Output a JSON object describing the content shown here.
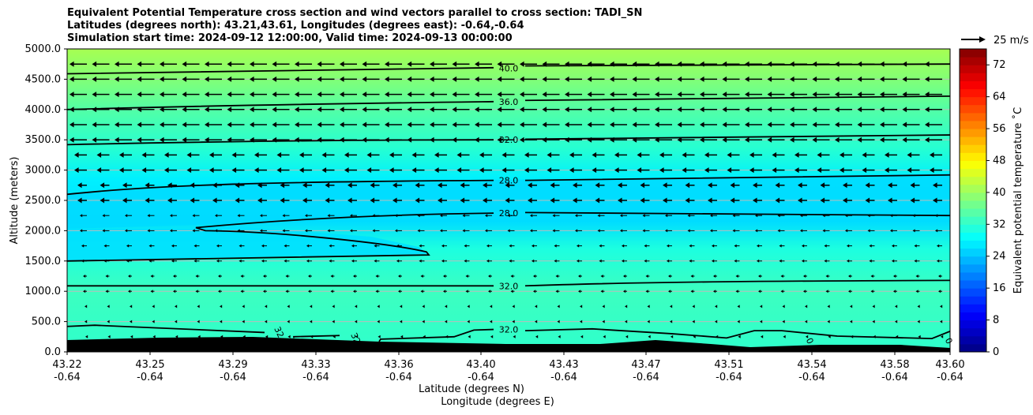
{
  "header": {
    "line1": "Equivalent Potential Temperature cross section and wind vectors parallel to cross section: TADI_SN",
    "line2": "Latitudes (degrees north): 43.21,43.61, Longitudes (degrees east): -0.64,-0.64",
    "line3": "Simulation start time: 2024-09-12 12:00:00, Valid time: 2024-09-13 00:00:00"
  },
  "chart_data": {
    "type": "heatmap",
    "title": "Equivalent Potential Temperature cross section and wind vectors parallel to cross section: TADI_SN",
    "xlabel": "Latitude (degrees N)",
    "xlabel2": "Longitude (degrees E)",
    "ylabel": "Altitude (meters)",
    "ylim": [
      0,
      5000
    ],
    "y_ticks": [
      "0.0",
      "500.0",
      "1000.0",
      "1500.0",
      "2000.0",
      "2500.0",
      "3000.0",
      "3500.0",
      "4000.0",
      "4500.0",
      "5000.0"
    ],
    "x_ticks_lat": [
      "43.22",
      "43.25",
      "43.29",
      "43.33",
      "43.36",
      "43.40",
      "43.43",
      "43.47",
      "43.51",
      "43.54",
      "43.58",
      "43.60"
    ],
    "x_ticks_lon": [
      "-0.64",
      "-0.64",
      "-0.64",
      "-0.64",
      "-0.64",
      "-0.64",
      "-0.64",
      "-0.64",
      "-0.64",
      "-0.64",
      "-0.64",
      "-0.64"
    ],
    "colorbar": {
      "label": "Equivalent potential temperature $^\\circ$C",
      "label_display": "Equivalent potential temperature ˚C",
      "range": [
        0,
        76
      ],
      "ticks": [
        "0",
        "8",
        "16",
        "24",
        "32",
        "40",
        "48",
        "56",
        "64",
        "72"
      ],
      "colormap": "jet"
    },
    "contour_labels": [
      "40.0",
      "36.0",
      "32.0",
      "28.0",
      "28.0",
      "32.0",
      "32.0",
      "32",
      "32",
      "0",
      "0"
    ],
    "contour_levels": [
      {
        "value": 40,
        "alt_left": 4590,
        "alt_right": 4750
      },
      {
        "value": 36,
        "alt_left": 4000,
        "alt_right": 4220
      },
      {
        "value": 32,
        "alt_left": 3420,
        "alt_right": 3580
      },
      {
        "value": 28,
        "alt_left": 2600,
        "alt_right": 2920
      },
      {
        "value": 28,
        "alt_left": 1500,
        "alt_right": 2250
      },
      {
        "value": 32,
        "alt_left": 1090,
        "alt_right": 1180
      },
      {
        "value": 32,
        "alt_left": 420,
        "alt_right": 340
      }
    ],
    "wind_reference": "25 m/s",
    "wind_direction": "southward (leftward) aloft, weakening toward surface"
  }
}
